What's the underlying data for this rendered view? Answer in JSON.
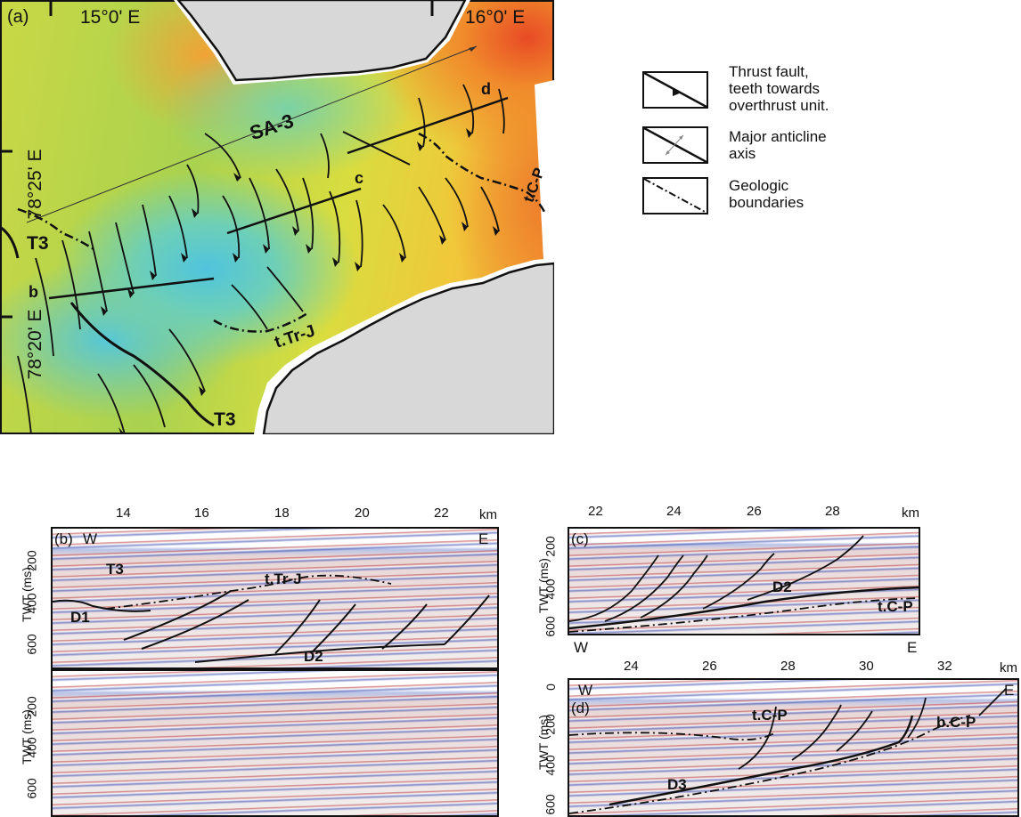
{
  "map": {
    "panel_label": "(a)",
    "lon_labels": [
      "15°0' E",
      "16°0' E"
    ],
    "lat_labels": [
      "78°25' E",
      "78°20' E"
    ],
    "line_name": "SA-3",
    "profile_labels": [
      "b",
      "c",
      "d"
    ],
    "unit_labels": [
      "T3",
      "T3",
      "t.Tr-J",
      "t.C-P"
    ]
  },
  "legend": {
    "items": [
      {
        "label": "Thrust fault, teeth towards overthrust unit.",
        "lines": [
          "Thrust fault,",
          "teeth towards",
          "overthrust unit."
        ],
        "icon": "thrust-fault-icon"
      },
      {
        "label": "Major anticline axis",
        "lines": [
          "Major anticline",
          "axis"
        ],
        "icon": "anticline-axis-icon"
      },
      {
        "label": "Geologic boundaries",
        "lines": [
          "Geologic",
          "boundaries"
        ],
        "icon": "geologic-boundary-icon"
      }
    ]
  },
  "panel_b": {
    "label": "(b)",
    "west": "W",
    "east": "E",
    "x_ticks": [
      "14",
      "16",
      "18",
      "20",
      "22"
    ],
    "x_unit": "km",
    "y_label": "TWT (ms)",
    "y_ticks": [
      "200",
      "400",
      "600"
    ],
    "y_ticks_lower": [
      "200",
      "400",
      "600"
    ],
    "annotations": [
      "T3",
      "t.Tr-J",
      "D1",
      "D2"
    ]
  },
  "panel_c": {
    "label": "(c)",
    "west": "W",
    "east": "E",
    "x_ticks": [
      "22",
      "24",
      "26",
      "28"
    ],
    "x_unit": "km",
    "y_label": "TWT (ms)",
    "y_ticks": [
      "200",
      "400",
      "600"
    ],
    "annotations": [
      "D2",
      "t.C-P"
    ]
  },
  "panel_d": {
    "label": "(d)",
    "west": "W",
    "east": "E",
    "x_ticks": [
      "24",
      "26",
      "28",
      "30",
      "32"
    ],
    "x_unit": "km",
    "y_label": "TWT (ms)",
    "y_ticks": [
      "0",
      "200",
      "400",
      "600"
    ],
    "annotations": [
      "t.C-P",
      "b.C-P",
      "D3"
    ]
  }
}
